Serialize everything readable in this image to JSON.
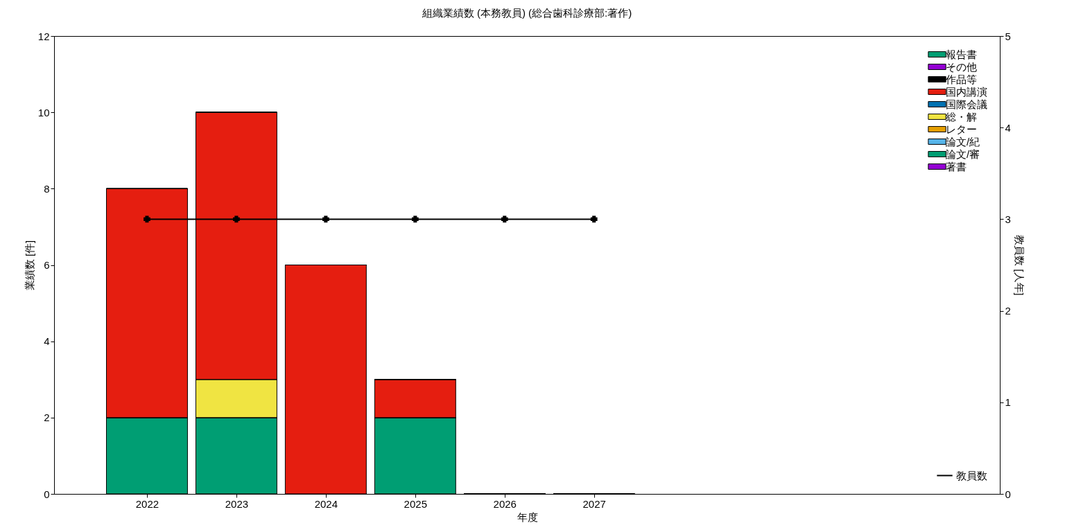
{
  "chart_data": {
    "type": "bar",
    "title": "組織業績数 (本務教員) (総合歯科診療部:著作)",
    "xlabel": "年度",
    "ylabel": "業績数 [件]",
    "y2label": "教員数 [人年]",
    "stacked": true,
    "legend": "top right",
    "grid": false,
    "x": [
      2022,
      2023,
      2024,
      2025,
      2026,
      2027
    ],
    "xlim": [
      2021,
      2031.5
    ],
    "xticks": [
      2022,
      2023,
      2024,
      2025,
      2026,
      2027
    ],
    "ylim": [
      0,
      12
    ],
    "yticks": [
      0,
      2,
      4,
      6,
      8,
      10,
      12
    ],
    "y2lim": [
      0,
      5
    ],
    "y2ticks": [
      0,
      1,
      2,
      3,
      4,
      5
    ],
    "series": [
      {
        "name": "著書",
        "color": "#9400d3",
        "values": [
          0,
          0,
          0,
          0,
          0,
          0
        ]
      },
      {
        "name": "論文/審",
        "color": "#009e73",
        "values": [
          2,
          2,
          0,
          2,
          0,
          0
        ]
      },
      {
        "name": "論文/紀",
        "color": "#56b4e9",
        "values": [
          0,
          0,
          0,
          0,
          0,
          0
        ]
      },
      {
        "name": "レター",
        "color": "#e69f00",
        "values": [
          0,
          0,
          0,
          0,
          0,
          0
        ]
      },
      {
        "name": "総・解",
        "color": "#f0e442",
        "values": [
          0,
          1,
          0,
          0,
          0,
          0
        ]
      },
      {
        "name": "国際会議",
        "color": "#0072b2",
        "values": [
          0,
          0,
          0,
          0,
          0,
          0
        ]
      },
      {
        "name": "国内講演",
        "color": "#e51e10",
        "values": [
          6,
          7,
          6,
          1,
          0,
          0
        ]
      },
      {
        "name": "作品等",
        "color": "#000000",
        "values": [
          0,
          0,
          0,
          0,
          0,
          0
        ]
      },
      {
        "name": "その他",
        "color": "#9400d3",
        "values": [
          0,
          0,
          0,
          0,
          0,
          0
        ]
      },
      {
        "name": "報告書",
        "color": "#009e73",
        "values": [
          0,
          0,
          0,
          0,
          0,
          0
        ]
      },
      {
        "name": "教員数",
        "type": "line",
        "axis": "y2",
        "color": "#000000",
        "marker": "cross",
        "values": [
          3,
          3,
          3,
          3,
          3,
          3
        ]
      }
    ]
  }
}
